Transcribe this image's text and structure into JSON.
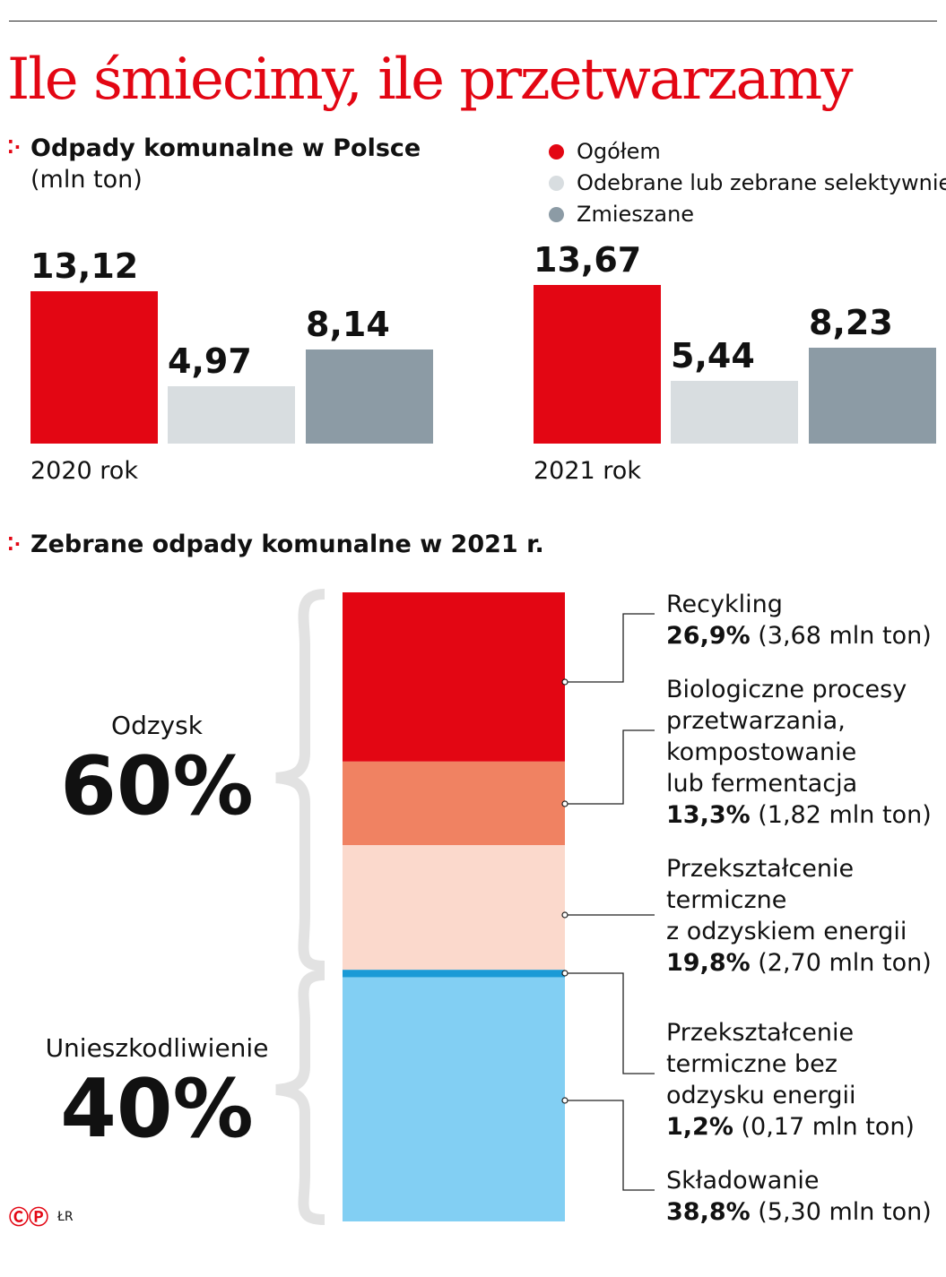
{
  "title": "Ile śmiecimy, ile przetwarzamy",
  "credit": "ŁR",
  "chart_data": [
    {
      "type": "bar",
      "title": "Odpady komunalne w Polsce",
      "unit": "(mln ton)",
      "categories": [
        "2020 rok",
        "2021 rok"
      ],
      "series": [
        {
          "name": "Ogółem",
          "color": "#e30613",
          "values": [
            13.12,
            13.67
          ],
          "labels": [
            "13,12",
            "13,67"
          ]
        },
        {
          "name": "Odebrane lub zebrane selektywnie",
          "color": "#d8dde0",
          "values": [
            4.97,
            5.44
          ],
          "labels": [
            "4,97",
            "5,44"
          ]
        },
        {
          "name": "Zmieszane",
          "color": "#8c9ba5",
          "values": [
            8.14,
            8.23
          ],
          "labels": [
            "8,14",
            "8,23"
          ]
        }
      ]
    },
    {
      "type": "stacked-bar",
      "title": "Zebrane odpady komunalne w 2021 r.",
      "groups": [
        {
          "name": "Odzysk",
          "pct": "60%"
        },
        {
          "name": "Unieszkodliwienie",
          "pct": "40%"
        }
      ],
      "segments": [
        {
          "name": "Recykling",
          "lines": [
            "Recykling"
          ],
          "pct": 26.9,
          "pct_label": "26,9%",
          "amount": "(3,68 mln ton)",
          "color": "#e30613"
        },
        {
          "name": "Biologiczne procesy przetwarzania, kompostowanie lub fermentacja",
          "lines": [
            "Biologiczne procesy",
            "przetwarzania,",
            "kompostowanie",
            "lub fermentacja"
          ],
          "pct": 13.3,
          "pct_label": "13,3%",
          "amount": "(1,82 mln ton)",
          "color": "#f08262"
        },
        {
          "name": "Przekształcenie termiczne z odzyskiem energii",
          "lines": [
            "Przekształcenie",
            "termiczne",
            "z odzyskiem energii"
          ],
          "pct": 19.8,
          "pct_label": "19,8%",
          "amount": "(2,70 mln ton)",
          "color": "#fbd9cc"
        },
        {
          "name": "Przekształcenie termiczne bez odzysku energii",
          "lines": [
            "Przekształcenie",
            "termiczne bez",
            "odzysku energii"
          ],
          "pct": 1.2,
          "pct_label": "1,2%",
          "amount": "(0,17 mln ton)",
          "color": "#1a9ad6"
        },
        {
          "name": "Składowanie",
          "lines": [
            "Składowanie"
          ],
          "pct": 38.8,
          "pct_label": "38,8%",
          "amount": "(5,30 mln ton)",
          "color": "#82cff3"
        }
      ]
    }
  ]
}
